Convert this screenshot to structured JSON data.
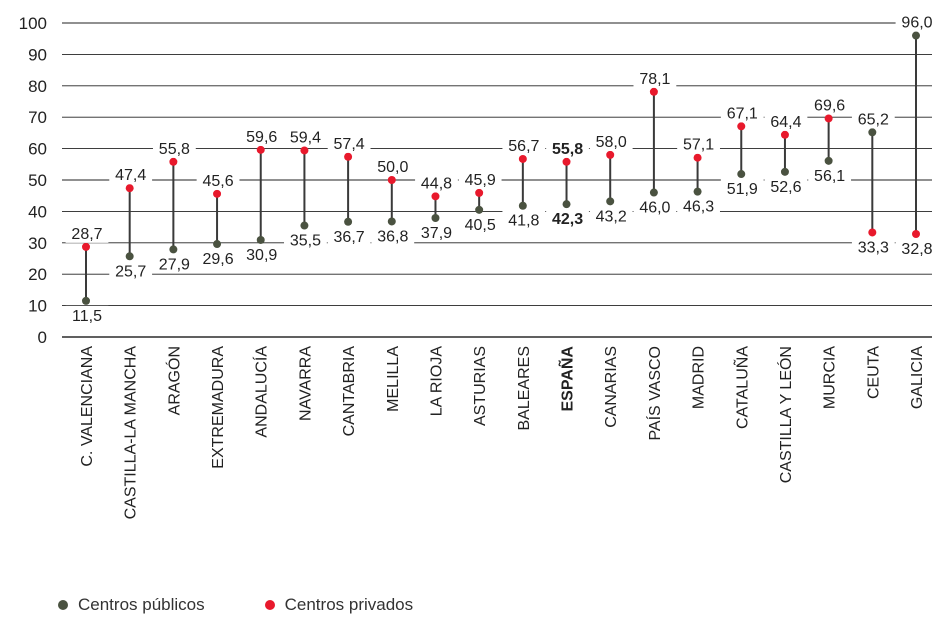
{
  "chart_data": {
    "type": "scatter",
    "title": "",
    "xlabel": "",
    "ylabel": "",
    "ylim": [
      0,
      100
    ],
    "yticks": [
      0,
      10,
      20,
      30,
      40,
      50,
      60,
      70,
      80,
      90,
      100
    ],
    "grid": true,
    "legend_position": "bottom-left",
    "colors": {
      "publicos": "#4a5240",
      "privados": "#e8192c",
      "stem": "#3a3a3a"
    },
    "highlight_category": "ESPAÑA",
    "categories": [
      "C. VALENCIANA",
      "CASTILLA-LA MANCHA",
      "ARAGÓN",
      "EXTREMADURA",
      "ANDALUCÍA",
      "NAVARRA",
      "CANTABRIA",
      "MELILLA",
      "LA RIOJA",
      "ASTURIAS",
      "BALEARES",
      "ESPAÑA",
      "CANARIAS",
      "PAÍS VASCO",
      "MADRID",
      "CATALUÑA",
      "CASTILLA Y LEÓN",
      "MURCIA",
      "CEUTA",
      "GALICIA"
    ],
    "series": [
      {
        "name": "Centros públicos",
        "values": [
          11.5,
          25.7,
          27.9,
          29.6,
          30.9,
          35.5,
          36.7,
          36.8,
          37.9,
          40.5,
          41.8,
          42.3,
          43.2,
          46.0,
          46.3,
          51.9,
          52.6,
          56.1,
          65.2,
          96.0
        ],
        "labels": [
          "11,5",
          "25,7",
          "27,9",
          "29,6",
          "30,9",
          "35,5",
          "36,7",
          "36,8",
          "37,9",
          "40,5",
          "41,8",
          "42,3",
          "43,2",
          "46,0",
          "46,3",
          "51,9",
          "52,6",
          "56,1",
          "65,2",
          "96,0"
        ]
      },
      {
        "name": "Centros privados",
        "values": [
          28.7,
          47.4,
          55.8,
          45.6,
          59.6,
          59.4,
          57.4,
          50.0,
          44.8,
          45.9,
          56.7,
          55.8,
          58.0,
          78.1,
          57.1,
          67.1,
          64.4,
          69.6,
          33.3,
          32.8
        ],
        "labels": [
          "28,7",
          "47,4",
          "55,8",
          "45,6",
          "59,6",
          "59,4",
          "57,4",
          "50,0",
          "44,8",
          "45,9",
          "56,7",
          "55,8",
          "58,0",
          "78,1",
          "57,1",
          "67,1",
          "64,4",
          "69,6",
          "33,3",
          "32,8"
        ]
      }
    ]
  }
}
